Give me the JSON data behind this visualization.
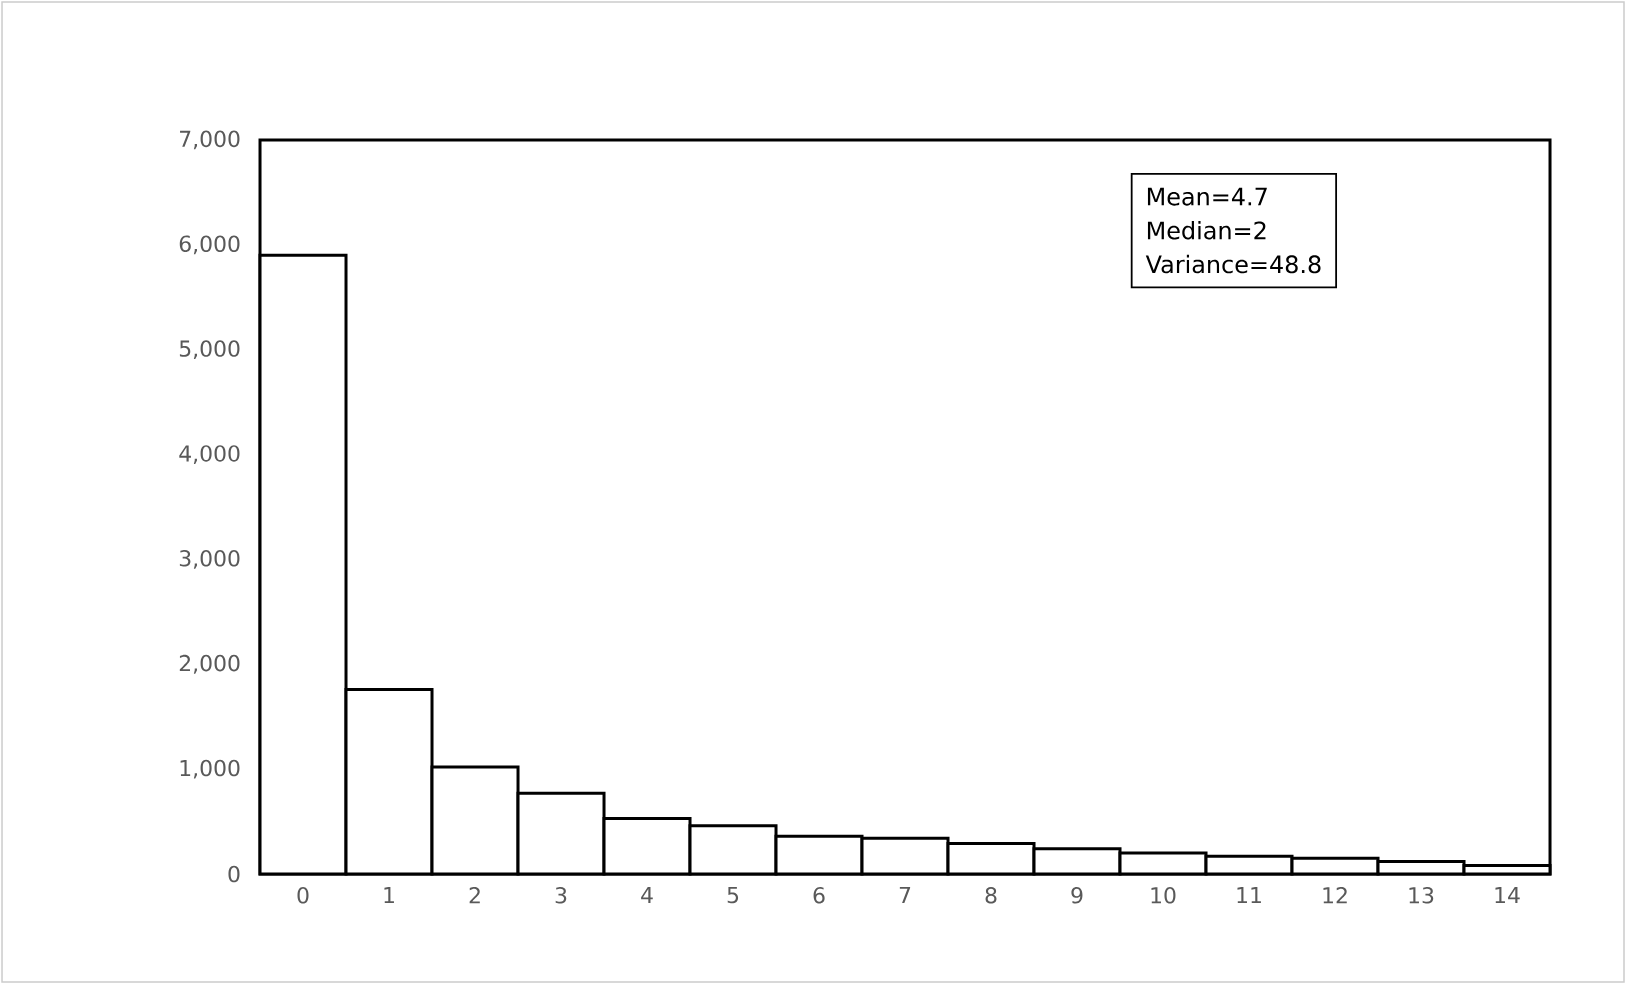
{
  "chart_data": {
    "type": "bar",
    "categories": [
      "0",
      "1",
      "2",
      "3",
      "4",
      "5",
      "6",
      "7",
      "8",
      "9",
      "10",
      "11",
      "12",
      "13",
      "14"
    ],
    "values": [
      5900,
      1760,
      1020,
      770,
      530,
      460,
      360,
      340,
      290,
      240,
      200,
      170,
      150,
      120,
      80
    ],
    "color": "#ffffff",
    "ylim": [
      0,
      7000
    ],
    "yticks": [
      0,
      {
        "value": 1000,
        "label": "1,000"
      },
      {
        "value": 2000,
        "label": "2,000"
      },
      {
        "value": 3000,
        "label": "3,000"
      },
      {
        "value": 4000,
        "label": "4,000"
      },
      {
        "value": 5000,
        "label": "5,000"
      },
      {
        "value": 6000,
        "label": "6,000"
      },
      {
        "value": 7000,
        "label": "7,000"
      }
    ],
    "annotations": [
      "Mean=4.7",
      "Median=2",
      "Variance=48.8"
    ]
  }
}
